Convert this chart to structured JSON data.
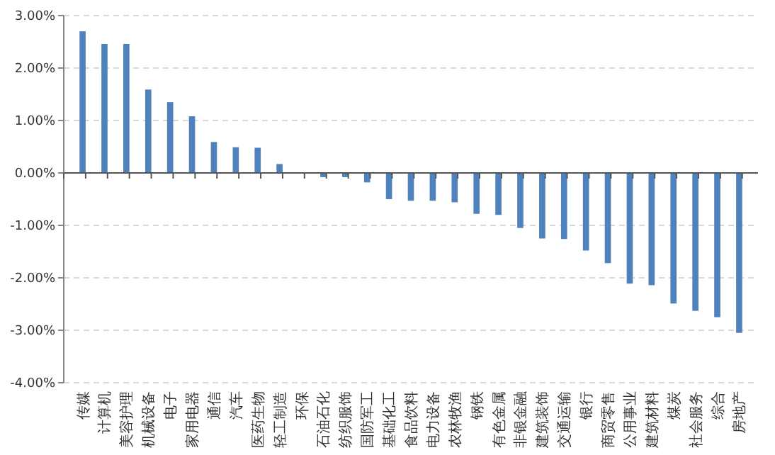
{
  "chart_data": {
    "type": "bar",
    "categories": [
      "传媒",
      "计算机",
      "美容护理",
      "机械设备",
      "电子",
      "家用电器",
      "通信",
      "汽车",
      "医药生物",
      "轻工制造",
      "环保",
      "石油石化",
      "纺织服饰",
      "国防军工",
      "基础化工",
      "食品饮料",
      "电力设备",
      "农林牧渔",
      "钢铁",
      "有色金属",
      "非银金融",
      "建筑装饰",
      "交通运输",
      "银行",
      "商贸零售",
      "公用事业",
      "建筑材料",
      "煤炭",
      "社会服务",
      "综合",
      "房地产"
    ],
    "values": [
      2.7,
      2.46,
      2.46,
      1.59,
      1.35,
      1.08,
      0.59,
      0.49,
      0.48,
      0.17,
      -0.01,
      -0.08,
      -0.08,
      -0.18,
      -0.5,
      -0.53,
      -0.53,
      -0.56,
      -0.78,
      -0.8,
      -1.05,
      -1.25,
      -1.26,
      -1.48,
      -1.72,
      -2.11,
      -2.14,
      -2.49,
      -2.63,
      -2.75,
      -3.05
    ],
    "color": "#4f81bd",
    "ylim": [
      -4,
      3
    ],
    "yticks": [
      {
        "value": -4,
        "label": "-4.00%"
      },
      {
        "value": -3,
        "label": "-3.00%"
      },
      {
        "value": -2,
        "label": "-2.00%"
      },
      {
        "value": -1,
        "label": "-1.00%"
      },
      {
        "value": 0,
        "label": "0.00%"
      },
      {
        "value": 1,
        "label": "1.00%"
      },
      {
        "value": 2,
        "label": "2.00%"
      },
      {
        "value": 3,
        "label": "3.00%"
      }
    ],
    "grid": "y"
  }
}
